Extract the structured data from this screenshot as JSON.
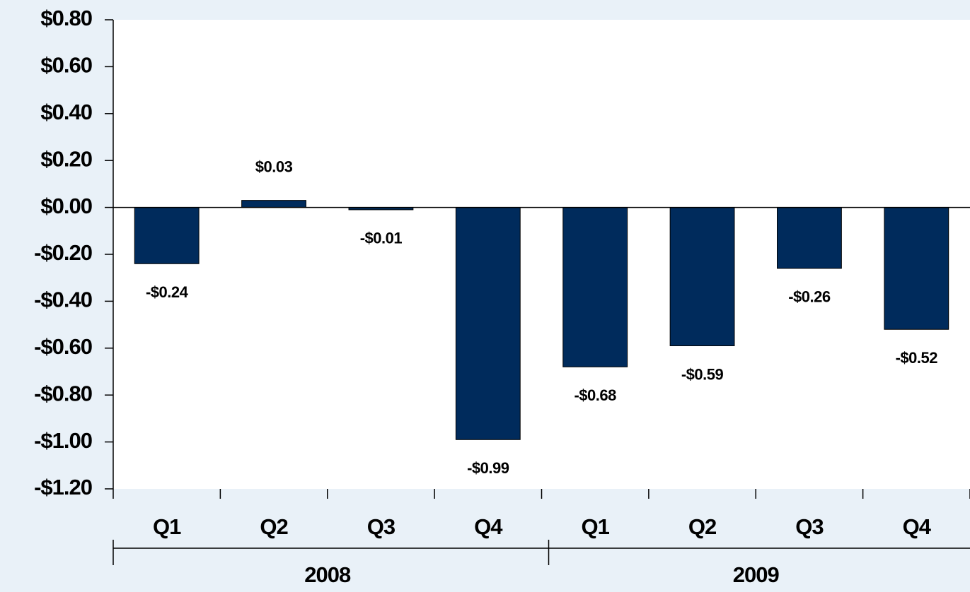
{
  "chart_data": {
    "type": "bar",
    "categories": [
      "Q1",
      "Q2",
      "Q3",
      "Q4",
      "Q1",
      "Q2",
      "Q3",
      "Q4"
    ],
    "groups": [
      "2008",
      "2009"
    ],
    "values": [
      -0.24,
      0.03,
      -0.01,
      -0.99,
      -0.68,
      -0.59,
      -0.26,
      -0.52
    ],
    "value_labels": [
      "-$0.24",
      "$0.03",
      "-$0.01",
      "-$0.99",
      "-$0.68",
      "-$0.59",
      "-$0.26",
      "-$0.52"
    ],
    "color": "#002b5c",
    "ylim": [
      -1.2,
      0.8
    ],
    "yticks": [
      {
        "value": -1.2,
        "label": "-$1.20"
      },
      {
        "value": -1.0,
        "label": "-$1.00"
      },
      {
        "value": -0.8,
        "label": "-$0.80"
      },
      {
        "value": -0.6,
        "label": "-$0.60"
      },
      {
        "value": -0.4,
        "label": "-$0.40"
      },
      {
        "value": -0.2,
        "label": "-$0.20"
      },
      {
        "value": 0,
        "label": "$0.00"
      },
      {
        "value": 0.2,
        "label": "$0.20"
      },
      {
        "value": 0.4,
        "label": "$0.40"
      },
      {
        "value": 0.6,
        "label": "$0.60"
      },
      {
        "value": 0.8,
        "label": "$0.80"
      }
    ],
    "grid": false
  }
}
